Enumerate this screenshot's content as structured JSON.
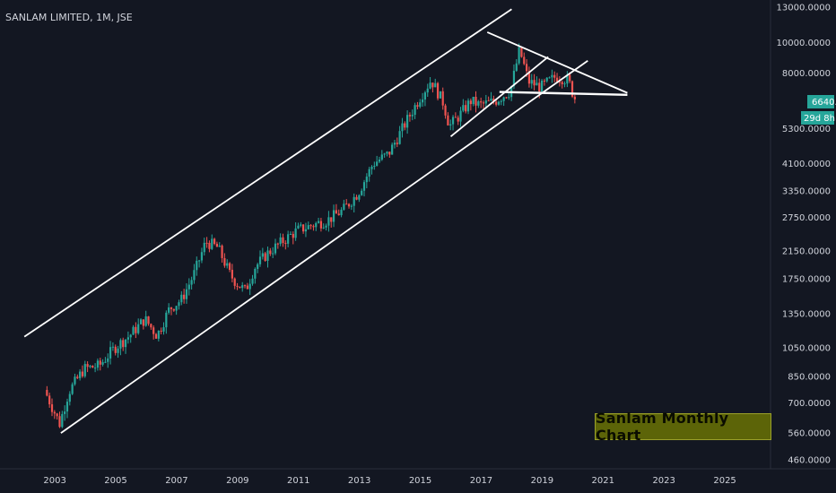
{
  "header": {
    "title": "SANLAM LIMITED, 1M, JSE"
  },
  "price_tag": {
    "value": "6640.0000",
    "countdown": "29d 8h",
    "color": "#26a69a"
  },
  "annotation": {
    "text": "Sanlam Monthly Chart",
    "background": "#5c6408"
  },
  "colors": {
    "background": "#131722",
    "up": "#26a69a",
    "down": "#ef5350",
    "trendline": "#ffffff",
    "axis_text": "#d1d4dc"
  },
  "chart_data": {
    "type": "candlestick",
    "title": "SANLAM LIMITED, 1M, JSE",
    "xlabel": "",
    "ylabel": "",
    "scale": "log",
    "x_ticks": [
      "2003",
      "2005",
      "2007",
      "2009",
      "2011",
      "2013",
      "2015",
      "2017",
      "2019",
      "2021",
      "2023",
      "2025"
    ],
    "y_ticks": [
      "13000.0000",
      "10000.0000",
      "8000.0000",
      "6640.0000",
      "5300.0000",
      "4100.0000",
      "3350.0000",
      "2750.0000",
      "2150.0000",
      "1750.0000",
      "1350.0000",
      "1050.0000",
      "850.0000",
      "700.0000",
      "560.0000",
      "460.0000"
    ],
    "xlim": [
      2001.2,
      2026.5
    ],
    "ylim": [
      430,
      13700
    ],
    "grid": false,
    "last_price": 6640,
    "price_path": [
      [
        2002.7,
        770
      ],
      [
        2003.2,
        600
      ],
      [
        2003.5,
        760
      ],
      [
        2004.0,
        900
      ],
      [
        2004.5,
        920
      ],
      [
        2005.0,
        1050
      ],
      [
        2005.5,
        1150
      ],
      [
        2006.0,
        1300
      ],
      [
        2006.4,
        1150
      ],
      [
        2006.8,
        1400
      ],
      [
        2007.2,
        1500
      ],
      [
        2007.6,
        1800
      ],
      [
        2008.0,
        2300
      ],
      [
        2008.4,
        2200
      ],
      [
        2008.8,
        1800
      ],
      [
        2009.0,
        1700
      ],
      [
        2009.3,
        1600
      ],
      [
        2009.6,
        1900
      ],
      [
        2010.0,
        2100
      ],
      [
        2010.5,
        2300
      ],
      [
        2011.0,
        2500
      ],
      [
        2011.5,
        2600
      ],
      [
        2012.0,
        2700
      ],
      [
        2012.5,
        2900
      ],
      [
        2013.0,
        3300
      ],
      [
        2013.5,
        4100
      ],
      [
        2014.0,
        4400
      ],
      [
        2014.5,
        5400
      ],
      [
        2015.0,
        6600
      ],
      [
        2015.4,
        7600
      ],
      [
        2015.8,
        6400
      ],
      [
        2016.0,
        5400
      ],
      [
        2016.3,
        5800
      ],
      [
        2016.7,
        6500
      ],
      [
        2017.0,
        6300
      ],
      [
        2017.5,
        6500
      ],
      [
        2018.0,
        7000
      ],
      [
        2018.3,
        9500
      ],
      [
        2018.6,
        7500
      ],
      [
        2019.0,
        7200
      ],
      [
        2019.5,
        7800
      ],
      [
        2019.9,
        7600
      ],
      [
        2020.1,
        6640
      ]
    ],
    "trendlines": [
      {
        "p1": [
          2002.0,
          1140
        ],
        "p2": [
          2018.0,
          12800
        ]
      },
      {
        "p1": [
          2003.2,
          560
        ],
        "p2": [
          2020.5,
          8750
        ]
      },
      {
        "p1": [
          2016.0,
          5000
        ],
        "p2": [
          2019.2,
          9000
        ]
      },
      {
        "p1": [
          2017.2,
          10800
        ],
        "p2": [
          2021.8,
          6900
        ]
      },
      {
        "p1": [
          2017.6,
          6950
        ],
        "p2": [
          2021.8,
          6800
        ]
      }
    ]
  }
}
